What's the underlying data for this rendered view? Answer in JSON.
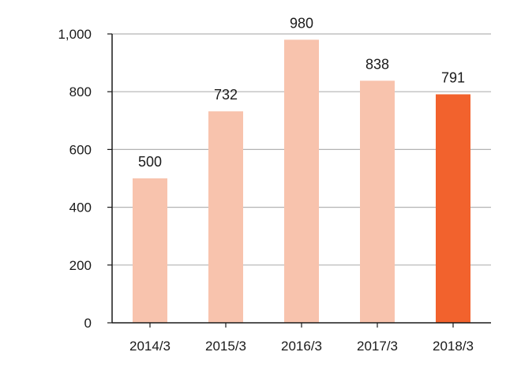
{
  "chart_data": {
    "type": "bar",
    "title": "",
    "xlabel": "",
    "ylabel": "",
    "categories": [
      "2014/3",
      "2015/3",
      "2016/3",
      "2017/3",
      "2018/3"
    ],
    "values": [
      500,
      732,
      980,
      838,
      791
    ],
    "data_labels": [
      "500",
      "732",
      "980",
      "838",
      "791"
    ],
    "ylim": [
      0,
      1000
    ],
    "yticks": [
      0,
      200,
      400,
      600,
      800,
      1000
    ],
    "ytick_labels": [
      "0",
      "200",
      "400",
      "600",
      "800",
      "1,000"
    ],
    "grid": true,
    "legend": "none",
    "colors": {
      "bar": "#f8c3ad",
      "highlight_bar": "#f2622d",
      "grid": "#b3b3b3",
      "axis": "#1a1a1a"
    },
    "highlight_category": "2018/3"
  }
}
